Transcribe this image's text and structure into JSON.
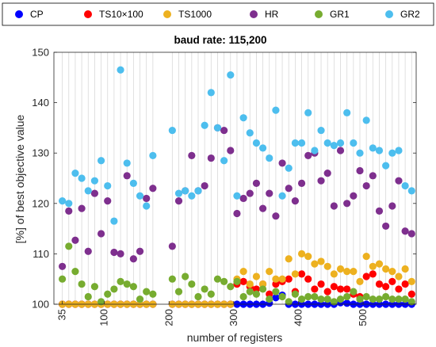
{
  "chart_data": {
    "type": "scatter",
    "title": "baud rate: 115,200",
    "xlabel": "number of registers",
    "ylabel": "[%] of best objective value",
    "ylim": [
      100,
      150
    ],
    "yticks": [
      100,
      110,
      120,
      130,
      140,
      150
    ],
    "xtick_labels": [
      "35",
      "100",
      "200",
      "300",
      "400",
      "500"
    ],
    "xtick_values": [
      35,
      100,
      200,
      300,
      400,
      500
    ],
    "grid": "vertical lines at each register count",
    "legend_position": "top",
    "register_counts": [
      35,
      45,
      55,
      65,
      75,
      85,
      95,
      105,
      115,
      125,
      135,
      145,
      155,
      165,
      175,
      205,
      215,
      225,
      235,
      245,
      255,
      265,
      275,
      285,
      295,
      305,
      315,
      325,
      335,
      345,
      355,
      365,
      375,
      385,
      395,
      405,
      415,
      425,
      435,
      445,
      455,
      465,
      475,
      485,
      495,
      505,
      515,
      525,
      535,
      545,
      555,
      565,
      575
    ],
    "series": [
      {
        "name": "CP",
        "color": "#0000ff",
        "values": [
          100,
          100,
          100,
          100,
          100,
          100,
          100,
          100,
          100,
          100,
          100,
          100,
          100,
          100,
          100,
          100,
          100,
          100,
          100,
          100,
          100,
          100,
          100,
          100,
          100,
          100,
          100,
          100,
          100,
          100,
          100.2,
          101.3,
          101.8,
          100,
          100,
          100,
          100,
          100,
          100,
          100,
          100,
          100.3,
          100.2,
          100,
          100,
          100,
          100,
          100,
          100,
          100,
          100,
          100,
          100
        ]
      },
      {
        "name": "TS10×100",
        "color": "#ff0000",
        "values": [
          100,
          100,
          100,
          100,
          100,
          100,
          100,
          100,
          100,
          100,
          100,
          100,
          100,
          100,
          100,
          100,
          100,
          100,
          100,
          100,
          100,
          100,
          100,
          100,
          100,
          104,
          104.5,
          103.5,
          103,
          104,
          102,
          104,
          104.5,
          105,
          102.5,
          106,
          105,
          103,
          104,
          102.5,
          103.5,
          103,
          103,
          102,
          101.5,
          105.5,
          106,
          104,
          103.5,
          104.5,
          103,
          104,
          102
        ]
      },
      {
        "name": "TS1000",
        "color": "#edb120",
        "values": [
          100,
          100,
          100,
          100,
          100,
          100,
          100,
          100,
          100,
          100,
          100,
          100,
          100,
          100,
          100,
          100,
          100,
          100,
          100,
          100,
          100,
          100,
          100,
          100,
          100,
          105,
          106.5,
          104,
          105.5,
          104,
          106.5,
          105,
          105,
          109,
          106,
          110,
          109.5,
          108,
          108.5,
          107.5,
          106,
          107,
          106.5,
          106.5,
          104.5,
          109.5,
          107.5,
          108,
          107,
          106.5,
          105.5,
          107,
          104.5
        ]
      },
      {
        "name": "HR",
        "color": "#7e2f8e",
        "values": [
          107.5,
          118.5,
          112.7,
          119,
          110.5,
          122,
          114,
          120.5,
          110.3,
          110,
          125.5,
          109,
          110.5,
          121,
          123,
          111.5,
          120.5,
          122.5,
          129.5,
          122.5,
          123.5,
          129,
          135,
          134.5,
          130.5,
          118,
          121,
          122,
          124,
          119,
          122,
          117.5,
          128,
          123,
          120.5,
          124,
          129.5,
          130,
          124.5,
          126,
          119.5,
          130.5,
          120,
          121.5,
          126.5,
          123.5,
          125.5,
          118.5,
          115.5,
          119.5,
          124.5,
          114.5,
          114
        ]
      },
      {
        "name": "GR1",
        "color": "#77ac30",
        "values": [
          105,
          111.5,
          106.5,
          104,
          101.5,
          103.5,
          100.5,
          102,
          103,
          104.5,
          104,
          103.5,
          101,
          102.5,
          102,
          105,
          102.5,
          105.5,
          104,
          101.5,
          103,
          102,
          105,
          104.5,
          103.5,
          104.5,
          101.5,
          102.5,
          102,
          103,
          101,
          102.5,
          101.5,
          100.5,
          102,
          101,
          101.5,
          101.5,
          101,
          101,
          100.5,
          101,
          101.5,
          102.5,
          101,
          101.5,
          101,
          101,
          101.5,
          101,
          101,
          101,
          100.5
        ]
      },
      {
        "name": "GR2",
        "color": "#4dbeee",
        "values": [
          120.5,
          120,
          126,
          125,
          122.5,
          124.5,
          128.5,
          123.5,
          116.5,
          146.5,
          128,
          124,
          121.5,
          119.5,
          129.5,
          134.5,
          122,
          122.5,
          121.5,
          122.5,
          135.5,
          142,
          135,
          128.5,
          145.5,
          121.5,
          137,
          134,
          132,
          131,
          129,
          138.5,
          121.5,
          127,
          132,
          132,
          138,
          130.5,
          134.5,
          132,
          131.5,
          132,
          138,
          132,
          130,
          136.5,
          131,
          130.5,
          127.5,
          130,
          130.5,
          123.5,
          122.5
        ]
      }
    ]
  }
}
